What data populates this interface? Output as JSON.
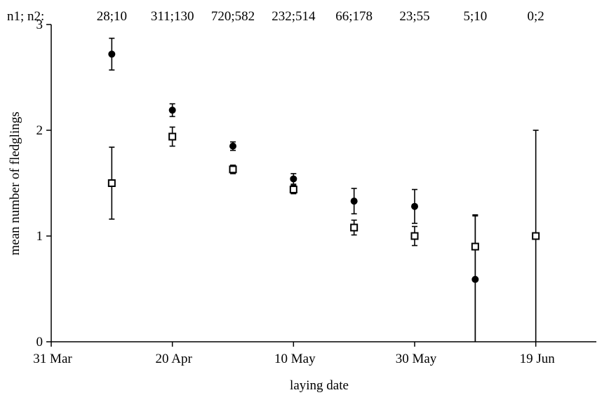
{
  "chart_data": {
    "type": "scatter",
    "title": "",
    "xlabel": "laying date",
    "ylabel": "mean number of fledglings",
    "xlim": [
      "2000-03-31",
      "2000-06-29"
    ],
    "ylim": [
      0,
      3
    ],
    "x_ticks": [
      {
        "date": "2000-03-31",
        "label": "31 Mar"
      },
      {
        "date": "2000-04-20",
        "label": "20 Apr"
      },
      {
        "date": "2000-05-10",
        "label": "10 May"
      },
      {
        "date": "2000-05-30",
        "label": "30 May"
      },
      {
        "date": "2000-06-19",
        "label": "19 Jun"
      }
    ],
    "y_ticks": [
      {
        "value": 0,
        "label": "0"
      },
      {
        "value": 1,
        "label": "1"
      },
      {
        "value": 2,
        "label": "2"
      },
      {
        "value": 3,
        "label": "3"
      }
    ],
    "n_prefix": "n1; n2: ",
    "n_labels": [
      "28;10",
      "311;130",
      "720;582",
      "232;514",
      "66;178",
      "23;55",
      "5;10",
      "0;2"
    ],
    "categories": [
      "2000-04-10",
      "2000-04-20",
      "2000-04-30",
      "2000-05-10",
      "2000-05-20",
      "2000-05-30",
      "2000-06-09",
      "2000-06-19"
    ],
    "series": [
      {
        "marker": "filled-circle",
        "values": [
          2.72,
          2.19,
          1.85,
          1.54,
          1.33,
          1.28,
          0.59,
          null
        ],
        "lower": [
          2.57,
          2.13,
          1.81,
          1.49,
          1.21,
          1.12,
          0.0,
          null
        ],
        "upper": [
          2.87,
          2.25,
          1.89,
          1.59,
          1.45,
          1.44,
          1.19,
          null
        ]
      },
      {
        "marker": "open-square",
        "values": [
          1.5,
          1.94,
          1.63,
          1.44,
          1.08,
          1.0,
          0.9,
          1.0
        ],
        "lower": [
          1.16,
          1.85,
          1.59,
          1.4,
          1.01,
          0.91,
          0.0,
          0.0
        ],
        "upper": [
          1.84,
          2.03,
          1.67,
          1.48,
          1.15,
          1.09,
          1.2,
          2.0
        ]
      }
    ],
    "grid": false,
    "legend": "none"
  }
}
